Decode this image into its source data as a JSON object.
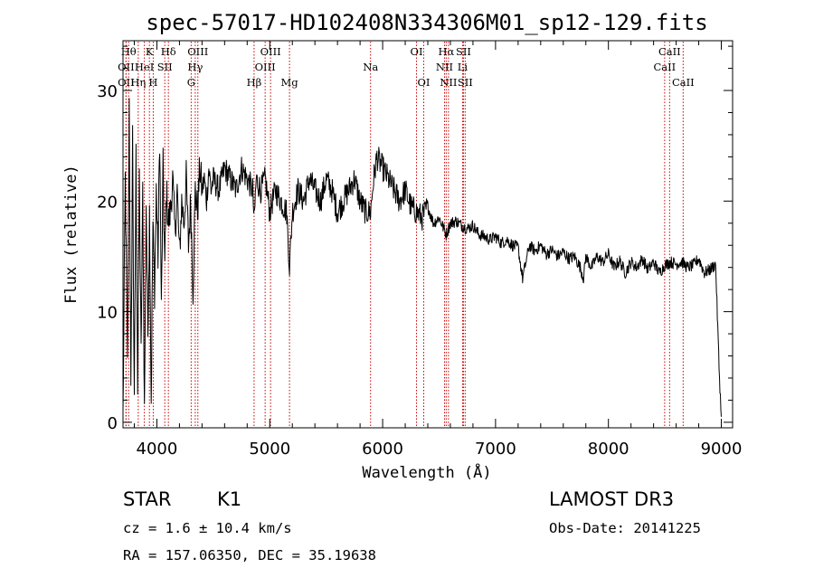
{
  "chart_data": {
    "type": "line",
    "title": "spec-57017-HD102408N334306M01_sp12-129.fits",
    "xlabel": "Wavelength (Å)",
    "ylabel": "Flux (relative)",
    "xlim": [
      3700,
      9100
    ],
    "ylim": [
      -0.5,
      34.5
    ],
    "xticks": [
      4000,
      5000,
      6000,
      7000,
      8000,
      9000
    ],
    "yticks": [
      0,
      10,
      20,
      30
    ],
    "grid": false,
    "line_color": "#000000",
    "marker_color": "#cc0000",
    "series": [
      {
        "name": "flux",
        "x": [
          3700,
          3720,
          3740,
          3755,
          3770,
          3785,
          3800,
          3815,
          3830,
          3845,
          3860,
          3875,
          3890,
          3905,
          3920,
          3935,
          3950,
          3965,
          3980,
          3995,
          4010,
          4025,
          4040,
          4055,
          4070,
          4085,
          4100,
          4120,
          4140,
          4160,
          4180,
          4200,
          4220,
          4240,
          4260,
          4280,
          4300,
          4320,
          4340,
          4360,
          4380,
          4400,
          4420,
          4440,
          4460,
          4480,
          4500,
          4550,
          4600,
          4650,
          4700,
          4750,
          4800,
          4850,
          4861,
          4880,
          4920,
          4960,
          5000,
          5050,
          5100,
          5150,
          5175,
          5200,
          5250,
          5300,
          5350,
          5400,
          5450,
          5500,
          5550,
          5600,
          5650,
          5700,
          5750,
          5800,
          5850,
          5893,
          5920,
          5950,
          6000,
          6050,
          6100,
          6150,
          6200,
          6250,
          6300,
          6350,
          6400,
          6450,
          6500,
          6563,
          6600,
          6650,
          6700,
          6750,
          6800,
          6850,
          6900,
          6950,
          7000,
          7050,
          7100,
          7150,
          7200,
          7240,
          7300,
          7350,
          7400,
          7450,
          7500,
          7550,
          7600,
          7650,
          7700,
          7750,
          7780,
          7800,
          7850,
          7900,
          7950,
          8000,
          8050,
          8100,
          8150,
          8200,
          8250,
          8300,
          8350,
          8400,
          8450,
          8500,
          8550,
          8600,
          8650,
          8700,
          8750,
          8800,
          8850,
          8900,
          8950,
          8980,
          9000
        ],
        "values": [
          0.5,
          22,
          5,
          29,
          2,
          26,
          1,
          24,
          3,
          22,
          6,
          21,
          1,
          20,
          8,
          19,
          2,
          18,
          12,
          21,
          15,
          26,
          10,
          23,
          14,
          21,
          18,
          19,
          22,
          17,
          21,
          15,
          20,
          18,
          22,
          16,
          20,
          12,
          21,
          19,
          23,
          21,
          22,
          20,
          23,
          21,
          22,
          21,
          23,
          22,
          21,
          23,
          22,
          21,
          18,
          22,
          21,
          22,
          19,
          21,
          20,
          19,
          14,
          19,
          21,
          20,
          22,
          21,
          20,
          22,
          21,
          19,
          20,
          21,
          22,
          20,
          19,
          19,
          22,
          24,
          23,
          22,
          21,
          20,
          21,
          19.5,
          19,
          18.5,
          19.5,
          18,
          18.5,
          17,
          18,
          18.2,
          17.8,
          17.5,
          17.8,
          17,
          16.8,
          16.5,
          16.8,
          16.2,
          16.5,
          16,
          15.8,
          13,
          16,
          15.5,
          16,
          15.2,
          15.6,
          15,
          15.4,
          14.8,
          15,
          14,
          13,
          15,
          14,
          15,
          14.5,
          15.2,
          14,
          14.6,
          13.5,
          14.5,
          14,
          14.8,
          13.8,
          14.5,
          13.5,
          14.2,
          14.5,
          14.3,
          14.5,
          14,
          14.2,
          14.8,
          13.5,
          13.8,
          14.3,
          5,
          0.5
        ]
      }
    ],
    "line_markers": [
      {
        "name": "OII",
        "x": 3727,
        "row": 2
      },
      {
        "name": "OII",
        "x": 3727,
        "row": 3
      },
      {
        "name": "Hθ",
        "x": 3750,
        "row": 1
      },
      {
        "name": "Hη",
        "x": 3835,
        "row": 3
      },
      {
        "name": "HeI",
        "x": 3889,
        "row": 2
      },
      {
        "name": "K",
        "x": 3934,
        "row": 1
      },
      {
        "name": "H",
        "x": 3968,
        "row": 3
      },
      {
        "name": "SII",
        "x": 4070,
        "row": 2
      },
      {
        "name": "Hδ",
        "x": 4102,
        "row": 1
      },
      {
        "name": "OIII",
        "x": 4363,
        "row": 1
      },
      {
        "name": "Hγ",
        "x": 4340,
        "row": 2
      },
      {
        "name": "G",
        "x": 4304,
        "row": 3
      },
      {
        "name": "Hβ",
        "x": 4861,
        "row": 3
      },
      {
        "name": "OIII",
        "x": 4959,
        "row": 2
      },
      {
        "name": "OIII",
        "x": 5007,
        "row": 1
      },
      {
        "name": "Mg",
        "x": 5175,
        "row": 3
      },
      {
        "name": "Na",
        "x": 5893,
        "row": 2
      },
      {
        "name": "OI",
        "x": 6300,
        "row": 1
      },
      {
        "name": "OI",
        "x": 6364,
        "row": 3
      },
      {
        "name": "NII",
        "x": 6548,
        "row": 2
      },
      {
        "name": "Hα",
        "x": 6563,
        "row": 1
      },
      {
        "name": "NII",
        "x": 6583,
        "row": 3
      },
      {
        "name": "Li",
        "x": 6708,
        "row": 2
      },
      {
        "name": "SII",
        "x": 6716,
        "row": 1
      },
      {
        "name": "SII",
        "x": 6731,
        "row": 3
      },
      {
        "name": "CaII",
        "x": 8498,
        "row": 2
      },
      {
        "name": "CaII",
        "x": 8542,
        "row": 1
      },
      {
        "name": "CaII",
        "x": 8662,
        "row": 3
      }
    ]
  },
  "info": {
    "object_class": "STAR",
    "subclass": "K1",
    "survey": "LAMOST DR3",
    "cz": "cz = 1.6 ± 10.4 km/s",
    "obs_date": "Obs-Date: 20141225",
    "coords": "RA = 157.06350, DEC =  35.19638"
  }
}
